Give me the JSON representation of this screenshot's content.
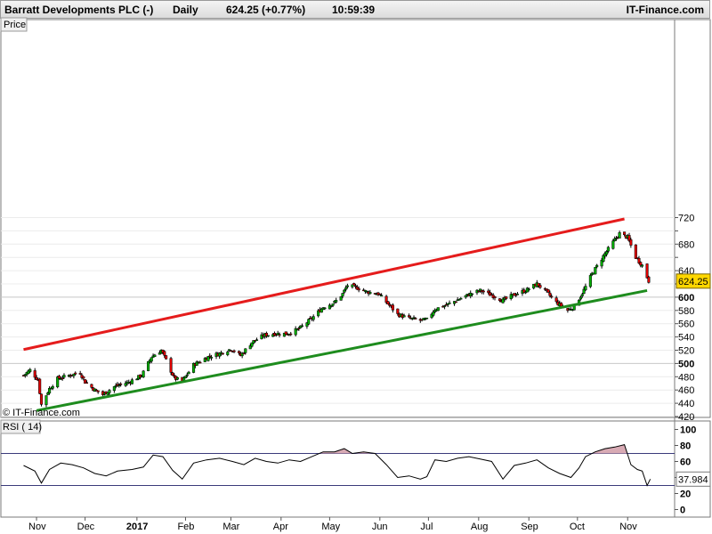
{
  "header": {
    "title": "Barratt Developments PLC (-)",
    "period": "Daily",
    "price_change": "624.25 (+0.77%)",
    "time": "10:59:39",
    "brand": "IT-Finance.com"
  },
  "chart_data": [
    {
      "type": "candlestick",
      "panel_label": "Price",
      "watermark": "© IT-Finance.com",
      "last_price_label": "624.25",
      "ylim": [
        420,
        725
      ],
      "y_ticks": [
        420,
        440,
        460,
        480,
        500,
        520,
        540,
        560,
        580,
        600,
        620,
        640,
        660,
        680,
        700,
        720
      ],
      "y_tick_labels": [
        "420",
        "440",
        "460",
        "480",
        "500",
        "520",
        "540",
        "560",
        "580",
        "600",
        "",
        "640",
        "",
        "680",
        "",
        "720"
      ],
      "bold_levels": [
        500,
        600
      ],
      "x_tick_labels": [
        "Nov",
        "Dec",
        "2017",
        "Feb",
        "Mar",
        "Apr",
        "May",
        "Jun",
        "Jul",
        "Aug",
        "Sep",
        "Oct",
        "Nov"
      ],
      "grid": true,
      "colors": {
        "up": "#00b000",
        "down": "#e00000",
        "resistance": "#e51c1c",
        "support": "#1e8c1e",
        "label_bg": "#ffd700"
      },
      "trendlines": [
        {
          "name": "resistance",
          "start": [
            "2016-10-24",
            521
          ],
          "end": [
            "2017-10-30",
            718
          ]
        },
        {
          "name": "support",
          "start": [
            "2016-11-01",
            429
          ],
          "end": [
            "2017-11-13",
            610
          ]
        }
      ],
      "close_path": [
        [
          "2016-10-24",
          482
        ],
        [
          "2016-10-28",
          490
        ],
        [
          "2016-11-02",
          475
        ],
        [
          "2016-11-04",
          438
        ],
        [
          "2016-11-09",
          462
        ],
        [
          "2016-11-14",
          477
        ],
        [
          "2016-11-21",
          482
        ],
        [
          "2016-11-28",
          486
        ],
        [
          "2016-12-01",
          472
        ],
        [
          "2016-12-07",
          460
        ],
        [
          "2016-12-12",
          453
        ],
        [
          "2016-12-19",
          465
        ],
        [
          "2016-12-28",
          472
        ],
        [
          "2017-01-05",
          482
        ],
        [
          "2017-01-11",
          510
        ],
        [
          "2017-01-17",
          520
        ],
        [
          "2017-01-20",
          505
        ],
        [
          "2017-01-25",
          478
        ],
        [
          "2017-01-30",
          473
        ],
        [
          "2017-02-06",
          498
        ],
        [
          "2017-02-15",
          510
        ],
        [
          "2017-02-22",
          515
        ],
        [
          "2017-03-01",
          522
        ],
        [
          "2017-03-07",
          512
        ],
        [
          "2017-03-14",
          532
        ],
        [
          "2017-03-21",
          542
        ],
        [
          "2017-03-28",
          545
        ],
        [
          "2017-04-05",
          545
        ],
        [
          "2017-04-12",
          552
        ],
        [
          "2017-04-20",
          568
        ],
        [
          "2017-04-27",
          585
        ],
        [
          "2017-05-04",
          592
        ],
        [
          "2017-05-09",
          605
        ],
        [
          "2017-05-12",
          618
        ],
        [
          "2017-05-18",
          614
        ],
        [
          "2017-05-24",
          608
        ],
        [
          "2017-05-31",
          605
        ],
        [
          "2017-06-06",
          590
        ],
        [
          "2017-06-12",
          574
        ],
        [
          "2017-06-19",
          568
        ],
        [
          "2017-06-26",
          565
        ],
        [
          "2017-06-30",
          566
        ],
        [
          "2017-07-05",
          582
        ],
        [
          "2017-07-12",
          588
        ],
        [
          "2017-07-19",
          596
        ],
        [
          "2017-07-26",
          604
        ],
        [
          "2017-08-02",
          610
        ],
        [
          "2017-08-09",
          603
        ],
        [
          "2017-08-16",
          595
        ],
        [
          "2017-08-23",
          604
        ],
        [
          "2017-08-30",
          610
        ],
        [
          "2017-09-06",
          620
        ],
        [
          "2017-09-11",
          610
        ],
        [
          "2017-09-18",
          592
        ],
        [
          "2017-09-25",
          580
        ],
        [
          "2017-09-29",
          586
        ],
        [
          "2017-10-04",
          606
        ],
        [
          "2017-10-10",
          635
        ],
        [
          "2017-10-17",
          662
        ],
        [
          "2017-10-23",
          683
        ],
        [
          "2017-10-27",
          696
        ],
        [
          "2017-11-01",
          690
        ],
        [
          "2017-11-06",
          660
        ],
        [
          "2017-11-10",
          648
        ],
        [
          "2017-11-14",
          624.25
        ]
      ]
    },
    {
      "type": "line",
      "panel_label": "RSI ( 14)",
      "series_name": "RSI ( 14)",
      "last_value_label": "37.984",
      "ylim": [
        0,
        100
      ],
      "y_ticks": [
        0,
        20,
        40,
        60,
        80,
        100
      ],
      "levels": [
        70,
        30
      ],
      "fill_colors": {
        "overbought": "#d8aab4",
        "oversold": "#b3b3ff"
      },
      "points": [
        [
          "2016-10-24",
          55
        ],
        [
          "2016-10-31",
          48
        ],
        [
          "2016-11-04",
          33
        ],
        [
          "2016-11-09",
          50
        ],
        [
          "2016-11-16",
          58
        ],
        [
          "2016-11-23",
          56
        ],
        [
          "2016-11-30",
          52
        ],
        [
          "2016-12-07",
          45
        ],
        [
          "2016-12-14",
          42
        ],
        [
          "2016-12-21",
          48
        ],
        [
          "2016-12-30",
          50
        ],
        [
          "2017-01-06",
          53
        ],
        [
          "2017-01-12",
          68
        ],
        [
          "2017-01-18",
          66
        ],
        [
          "2017-01-24",
          49
        ],
        [
          "2017-01-30",
          38
        ],
        [
          "2017-02-06",
          58
        ],
        [
          "2017-02-14",
          62
        ],
        [
          "2017-02-22",
          64
        ],
        [
          "2017-03-02",
          60
        ],
        [
          "2017-03-09",
          56
        ],
        [
          "2017-03-16",
          64
        ],
        [
          "2017-03-23",
          60
        ],
        [
          "2017-03-30",
          58
        ],
        [
          "2017-04-06",
          62
        ],
        [
          "2017-04-13",
          60
        ],
        [
          "2017-04-20",
          66
        ],
        [
          "2017-04-27",
          72
        ],
        [
          "2017-05-04",
          72
        ],
        [
          "2017-05-10",
          76
        ],
        [
          "2017-05-15",
          70
        ],
        [
          "2017-05-22",
          72
        ],
        [
          "2017-05-29",
          70
        ],
        [
          "2017-06-05",
          56
        ],
        [
          "2017-06-12",
          40
        ],
        [
          "2017-06-19",
          42
        ],
        [
          "2017-06-26",
          38
        ],
        [
          "2017-06-30",
          41
        ],
        [
          "2017-07-05",
          62
        ],
        [
          "2017-07-12",
          60
        ],
        [
          "2017-07-19",
          64
        ],
        [
          "2017-07-26",
          66
        ],
        [
          "2017-08-02",
          63
        ],
        [
          "2017-08-09",
          60
        ],
        [
          "2017-08-16",
          38
        ],
        [
          "2017-08-23",
          55
        ],
        [
          "2017-08-30",
          58
        ],
        [
          "2017-09-06",
          62
        ],
        [
          "2017-09-13",
          52
        ],
        [
          "2017-09-20",
          45
        ],
        [
          "2017-09-27",
          40
        ],
        [
          "2017-10-02",
          52
        ],
        [
          "2017-10-06",
          66
        ],
        [
          "2017-10-12",
          72
        ],
        [
          "2017-10-18",
          76
        ],
        [
          "2017-10-24",
          78
        ],
        [
          "2017-10-30",
          81
        ],
        [
          "2017-11-03",
          56
        ],
        [
          "2017-11-07",
          50
        ],
        [
          "2017-11-10",
          48
        ],
        [
          "2017-11-13",
          30
        ],
        [
          "2017-11-15",
          37.984
        ]
      ]
    }
  ]
}
